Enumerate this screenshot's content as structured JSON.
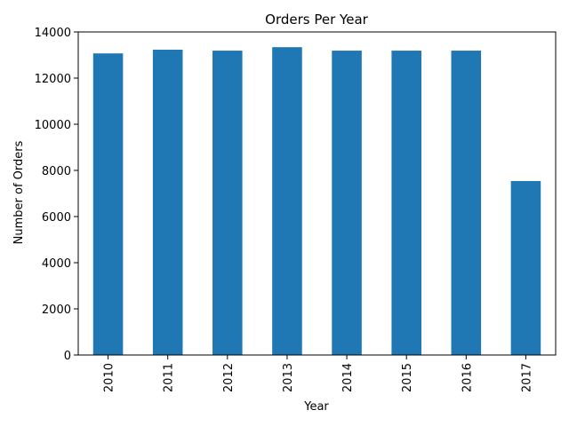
{
  "chart_data": {
    "type": "bar",
    "title": "Orders Per Year",
    "xlabel": "Year",
    "ylabel": "Number of Orders",
    "categories": [
      "2010",
      "2011",
      "2012",
      "2013",
      "2014",
      "2015",
      "2016",
      "2017"
    ],
    "values": [
      13070,
      13230,
      13190,
      13340,
      13190,
      13190,
      13190,
      7540
    ],
    "ylim": [
      0,
      14000
    ],
    "yticks": [
      0,
      2000,
      4000,
      6000,
      8000,
      10000,
      12000,
      14000
    ],
    "bar_color": "#1f77b4",
    "grid": false,
    "legend": "none"
  }
}
